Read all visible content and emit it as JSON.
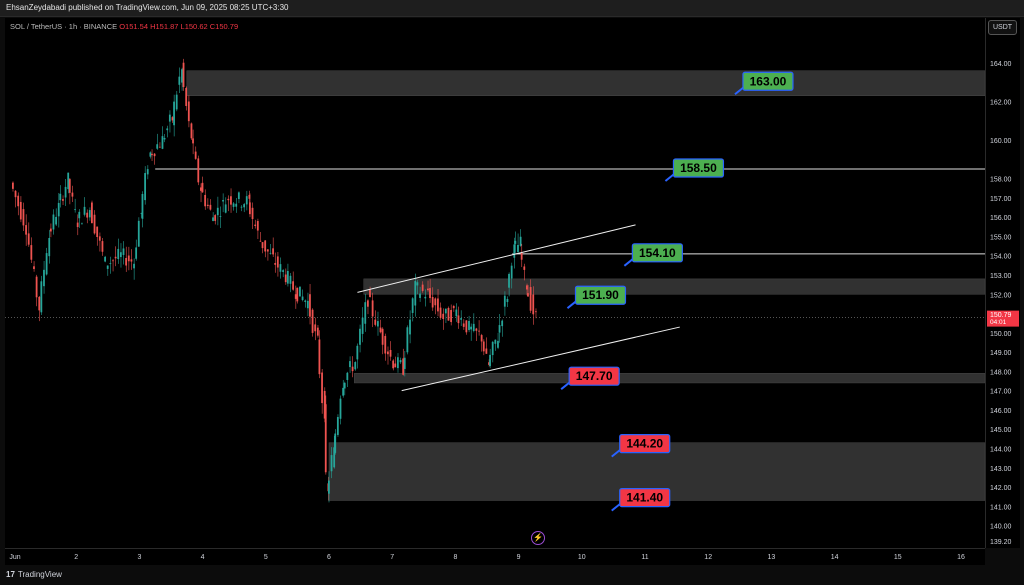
{
  "header": {
    "publisher_text": "EhsanZeydabadi published on TradingView.com, Jun 09, 2025 08:25 UTC+3:30"
  },
  "symbol_bar": {
    "name": "SOL / TetherUS · 1h · BINANCE",
    "open": "O151.54",
    "high": "H151.87",
    "low": "L150.62",
    "close": "C150.79"
  },
  "currency_button": "USDT",
  "footer": {
    "logo_text": "TradingView"
  },
  "colors": {
    "up": "#26a69a",
    "down": "#ef5350",
    "zone": "#3a3a3a",
    "green_label": "#4caf50",
    "red_label": "#f23645",
    "label_border": "#2962ff"
  },
  "chart_data": {
    "type": "candlestick",
    "title": "SOL / TetherUS · 1h · BINANCE",
    "xlabel": "",
    "ylabel": "",
    "ylim": [
      138.9,
      165.6
    ],
    "y_ticks": [
      "164.00",
      "162.00",
      "160.00",
      "158.00",
      "157.00",
      "156.00",
      "155.00",
      "154.00",
      "153.00",
      "152.00",
      "151.00",
      "150.00",
      "149.00",
      "148.00",
      "147.00",
      "146.00",
      "145.00",
      "144.00",
      "143.00",
      "142.00",
      "141.00",
      "140.00",
      "139.20"
    ],
    "x_ticks": [
      "Jun",
      "2",
      "3",
      "4",
      "5",
      "6",
      "7",
      "8",
      "9",
      "10",
      "11",
      "12",
      "13",
      "14",
      "15",
      "16"
    ],
    "current_price": "150.79",
    "countdown": "04:01",
    "price_path": [
      {
        "day": 1.0,
        "price": 157.8
      },
      {
        "day": 1.25,
        "price": 155.5
      },
      {
        "day": 1.45,
        "price": 151.3
      },
      {
        "day": 1.6,
        "price": 155.0
      },
      {
        "day": 1.75,
        "price": 156.5
      },
      {
        "day": 1.9,
        "price": 157.9
      },
      {
        "day": 2.05,
        "price": 155.8
      },
      {
        "day": 2.25,
        "price": 156.5
      },
      {
        "day": 2.5,
        "price": 153.6
      },
      {
        "day": 2.75,
        "price": 154.0
      },
      {
        "day": 2.95,
        "price": 153.7
      },
      {
        "day": 3.05,
        "price": 156.2
      },
      {
        "day": 3.2,
        "price": 159.3
      },
      {
        "day": 3.4,
        "price": 160.0
      },
      {
        "day": 3.55,
        "price": 161.1
      },
      {
        "day": 3.7,
        "price": 163.6
      },
      {
        "day": 3.85,
        "price": 160.2
      },
      {
        "day": 4.0,
        "price": 157.5
      },
      {
        "day": 4.2,
        "price": 156.0
      },
      {
        "day": 4.45,
        "price": 157.0
      },
      {
        "day": 4.75,
        "price": 156.8
      },
      {
        "day": 4.95,
        "price": 154.8
      },
      {
        "day": 5.15,
        "price": 153.8
      },
      {
        "day": 5.35,
        "price": 153.0
      },
      {
        "day": 5.5,
        "price": 152.2
      },
      {
        "day": 5.7,
        "price": 151.6
      },
      {
        "day": 5.85,
        "price": 149.5
      },
      {
        "day": 5.95,
        "price": 146.0
      },
      {
        "day": 6.0,
        "price": 141.6
      },
      {
        "day": 6.1,
        "price": 143.8
      },
      {
        "day": 6.25,
        "price": 147.5
      },
      {
        "day": 6.45,
        "price": 148.5
      },
      {
        "day": 6.65,
        "price": 151.8
      },
      {
        "day": 6.85,
        "price": 150.0
      },
      {
        "day": 7.05,
        "price": 148.5
      },
      {
        "day": 7.2,
        "price": 148.2
      },
      {
        "day": 7.4,
        "price": 152.3
      },
      {
        "day": 7.6,
        "price": 152.0
      },
      {
        "day": 7.85,
        "price": 150.8
      },
      {
        "day": 8.05,
        "price": 151.1
      },
      {
        "day": 8.25,
        "price": 150.2
      },
      {
        "day": 8.45,
        "price": 149.8
      },
      {
        "day": 8.55,
        "price": 148.3
      },
      {
        "day": 8.7,
        "price": 149.8
      },
      {
        "day": 8.85,
        "price": 152.0
      },
      {
        "day": 8.95,
        "price": 154.3
      },
      {
        "day": 9.05,
        "price": 154.6
      },
      {
        "day": 9.15,
        "price": 152.5
      },
      {
        "day": 9.3,
        "price": 150.8
      }
    ],
    "zones": [
      {
        "from": 162.3,
        "to": 163.6
      },
      {
        "from": 152.0,
        "to": 152.8
      },
      {
        "from": 147.4,
        "to": 147.9
      },
      {
        "from": 141.3,
        "to": 144.3
      }
    ],
    "horizontal_lines": [
      158.5,
      154.1
    ],
    "channel": {
      "upper": [
        {
          "day": 6.45,
          "price": 152.1
        },
        {
          "day": 10.85,
          "price": 155.6
        }
      ],
      "lower": [
        {
          "day": 7.15,
          "price": 147.0
        },
        {
          "day": 11.55,
          "price": 150.3
        }
      ]
    },
    "labels": [
      {
        "text": "163.00",
        "price": 163.0,
        "color": "green",
        "day": 12.55
      },
      {
        "text": "158.50",
        "price": 158.5,
        "color": "green",
        "day": 11.45
      },
      {
        "text": "154.10",
        "price": 154.1,
        "color": "green",
        "day": 10.8
      },
      {
        "text": "151.90",
        "price": 151.9,
        "color": "green",
        "day": 9.9
      },
      {
        "text": "147.70",
        "price": 147.7,
        "color": "red",
        "day": 9.8
      },
      {
        "text": "144.20",
        "price": 144.2,
        "color": "red",
        "day": 10.6
      },
      {
        "text": "141.40",
        "price": 141.4,
        "color": "red",
        "day": 10.6
      }
    ]
  }
}
